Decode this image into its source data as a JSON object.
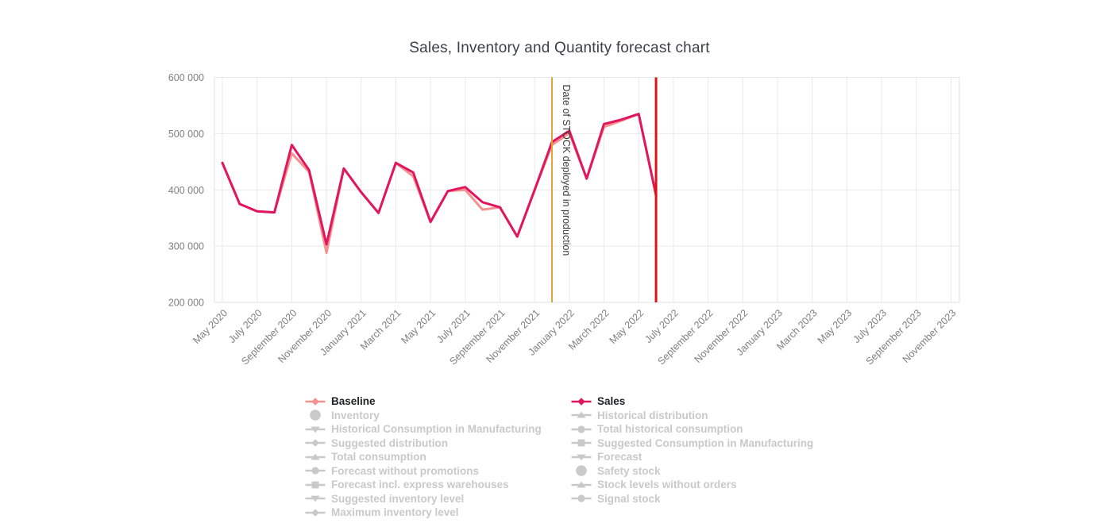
{
  "chart": {
    "title": "Sales, Inventory and Quantity forecast chart",
    "background": "#ffffff",
    "gridline_color": "#e9e9e9",
    "border_color": "#dfe2ec",
    "axis_label_color": "#7f7f7f"
  },
  "chart_data": {
    "type": "line",
    "title": "Sales, Inventory and Quantity forecast chart",
    "xlabel": "",
    "ylabel": "",
    "ylim": [
      200000,
      600000
    ],
    "grid": true,
    "legend_position": "bottom",
    "y_tick_labels": [
      "200 000",
      "300 000",
      "400 000",
      "500 000",
      "600 000"
    ],
    "y_tick_values": [
      200000,
      300000,
      400000,
      500000,
      600000
    ],
    "x_tick_labels": [
      "May 2020",
      "July 2020",
      "September 2020",
      "November 2020",
      "January 2021",
      "March 2021",
      "May 2021",
      "July 2021",
      "September 2021",
      "November 2021",
      "January 2022",
      "March 2022",
      "May 2022",
      "July 2022",
      "September 2022",
      "November 2022",
      "January 2023",
      "March 2023",
      "May 2023",
      "July 2023",
      "September 2023",
      "November 2023"
    ],
    "x_tick_every": 2,
    "x_total_slots": 43,
    "categories": [
      "May 2020",
      "June 2020",
      "July 2020",
      "August 2020",
      "September 2020",
      "October 2020",
      "November 2020",
      "December 2020",
      "January 2021",
      "February 2021",
      "March 2021",
      "April 2021",
      "May 2021",
      "June 2021",
      "July 2021",
      "August 2021",
      "September 2021",
      "October 2021",
      "November 2021",
      "December 2021",
      "January 2022",
      "February 2022",
      "March 2022",
      "April 2022",
      "May 2022",
      "June 2022"
    ],
    "series": [
      {
        "name": "Baseline",
        "color": "#f5918f",
        "values": [
          448000,
          375000,
          362000,
          360000,
          465000,
          432000,
          288000,
          438000,
          396000,
          359000,
          448000,
          424000,
          343000,
          398000,
          400000,
          365000,
          369000,
          317000,
          400000,
          480000,
          501000,
          420000,
          512000,
          523000,
          535000,
          390000
        ]
      },
      {
        "name": "Sales",
        "color": "#e0175f",
        "values": [
          448000,
          375000,
          362000,
          360000,
          480000,
          435000,
          303000,
          438000,
          396000,
          359000,
          448000,
          431000,
          343000,
          398000,
          405000,
          378000,
          369000,
          317000,
          400000,
          485000,
          505000,
          420000,
          517000,
          525000,
          535000,
          390000
        ]
      }
    ],
    "annotations": [
      {
        "type": "vline",
        "at": "December 2021",
        "label": "Date of STOCK deployed in production",
        "color": "#dfa437",
        "width": 2,
        "label_color": "#3a3a3a"
      },
      {
        "type": "vline",
        "at": "June 2022",
        "label": "",
        "color": "#e01313",
        "width": 3,
        "label_color": "#3a3a3a"
      }
    ]
  },
  "legend": {
    "active_text_color": "#1f2023",
    "disabled_color": "#c9c9c9",
    "columns": [
      [
        {
          "label": "Baseline",
          "marker": "diamond",
          "active": true,
          "color": "#f5918f"
        },
        {
          "label": "Inventory",
          "marker": "circle-large",
          "active": false
        },
        {
          "label": "Historical Consumption in Manufacturing",
          "marker": "triangle-down",
          "active": false
        },
        {
          "label": "Suggested distribution",
          "marker": "diamond",
          "active": false
        },
        {
          "label": "Total consumption",
          "marker": "triangle-up",
          "active": false
        },
        {
          "label": "Forecast without promotions",
          "marker": "circle",
          "active": false
        },
        {
          "label": "Forecast incl. express warehouses",
          "marker": "square",
          "active": false
        },
        {
          "label": "Suggested inventory level",
          "marker": "triangle-down",
          "active": false
        },
        {
          "label": "Maximum inventory level",
          "marker": "diamond",
          "active": false
        }
      ],
      [
        {
          "label": "Sales",
          "marker": "diamond",
          "active": true,
          "color": "#e0175f"
        },
        {
          "label": "Historical distribution",
          "marker": "triangle-up",
          "active": false
        },
        {
          "label": "Total historical consumption",
          "marker": "circle",
          "active": false
        },
        {
          "label": "Suggested Consumption in Manufacturing",
          "marker": "square",
          "active": false
        },
        {
          "label": "Forecast",
          "marker": "triangle-down",
          "active": false
        },
        {
          "label": "Safety stock",
          "marker": "circle-large",
          "active": false
        },
        {
          "label": "Stock levels without orders",
          "marker": "triangle-up",
          "active": false
        },
        {
          "label": "Signal stock",
          "marker": "circle",
          "active": false
        }
      ]
    ]
  }
}
